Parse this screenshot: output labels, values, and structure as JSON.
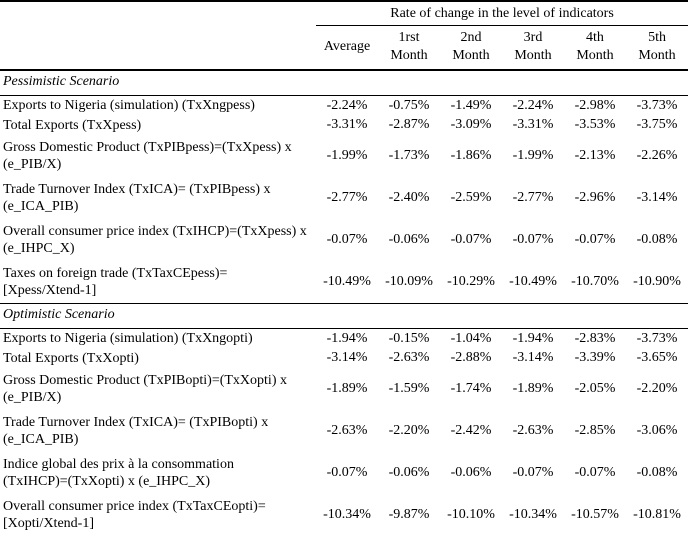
{
  "table": {
    "span_header": "Rate of change in the level of indicators",
    "columns": [
      "Average",
      "1rst\nMonth",
      "2nd\nMonth",
      "3rd\nMonth",
      "4th\nMonth",
      "5th\nMonth"
    ]
  },
  "sections": [
    {
      "title": "Pessimistic Scenario",
      "rows": [
        {
          "label": "Exports to Nigeria (simulation) (TxXngpess)",
          "values": [
            "-2.24%",
            "-0.75%",
            "-1.49%",
            "-2.24%",
            "-2.98%",
            "-3.73%"
          ]
        },
        {
          "label": "Total Exports (TxXpess)",
          "values": [
            "-3.31%",
            "-2.87%",
            "-3.09%",
            "-3.31%",
            "-3.53%",
            "-3.75%"
          ]
        },
        {
          "label": "Gross Domestic Product (TxPIBpess)=(TxXpess) x\n(e_PIB/X)",
          "values": [
            "-1.99%",
            "-1.73%",
            "-1.86%",
            "-1.99%",
            "-2.13%",
            "-2.26%"
          ]
        },
        {
          "label": "Trade Turnover Index (TxICA)= (TxPIBpess) x\n(e_ICA_PIB)",
          "values": [
            "-2.77%",
            "-2.40%",
            "-2.59%",
            "-2.77%",
            "-2.96%",
            "-3.14%"
          ]
        },
        {
          "label": "Overall consumer price index (TxIHCP)=(TxXpess) x\n(e_IHPC_X)",
          "values": [
            "-0.07%",
            "-0.06%",
            "-0.07%",
            "-0.07%",
            "-0.07%",
            "-0.08%"
          ]
        },
        {
          "label": "Taxes on foreign trade (TxTaxCEpess)=\n[Xpess/Xtend-1]",
          "values": [
            "-10.49%",
            "-10.09%",
            "-10.29%",
            "-10.49%",
            "-10.70%",
            "-10.90%"
          ]
        }
      ]
    },
    {
      "title": "Optimistic Scenario",
      "rows": [
        {
          "label": "Exports to Nigeria (simulation) (TxXngopti)",
          "values": [
            "-1.94%",
            "-0.15%",
            "-1.04%",
            "-1.94%",
            "-2.83%",
            "-3.73%"
          ]
        },
        {
          "label": "Total Exports (TxXopti)",
          "values": [
            "-3.14%",
            "-2.63%",
            "-2.88%",
            "-3.14%",
            "-3.39%",
            "-3.65%"
          ]
        },
        {
          "label": "Gross Domestic Product (TxPIBopti)=(TxXopti) x\n(e_PIB/X)",
          "values": [
            "-1.89%",
            "-1.59%",
            "-1.74%",
            "-1.89%",
            "-2.05%",
            "-2.20%"
          ]
        },
        {
          "label": "Trade Turnover Index (TxICA)= (TxPIBopti) x\n(e_ICA_PIB)",
          "values": [
            "-2.63%",
            "-2.20%",
            "-2.42%",
            "-2.63%",
            "-2.85%",
            "-3.06%"
          ]
        },
        {
          "label": "Indice global des prix à la consommation\n(TxIHCP)=(TxXopti) x (e_IHPC_X)",
          "values": [
            "-0.07%",
            "-0.06%",
            "-0.06%",
            "-0.07%",
            "-0.07%",
            "-0.08%"
          ]
        },
        {
          "label": "Overall consumer price index (TxTaxCEopti)=\n[Xopti/Xtend-1]",
          "values": [
            "-10.34%",
            "-9.87%",
            "-10.10%",
            "-10.34%",
            "-10.57%",
            "-10.81%"
          ]
        }
      ]
    }
  ],
  "colors": {
    "text": "#000000",
    "background": "#ffffff",
    "rule": "#000000"
  }
}
